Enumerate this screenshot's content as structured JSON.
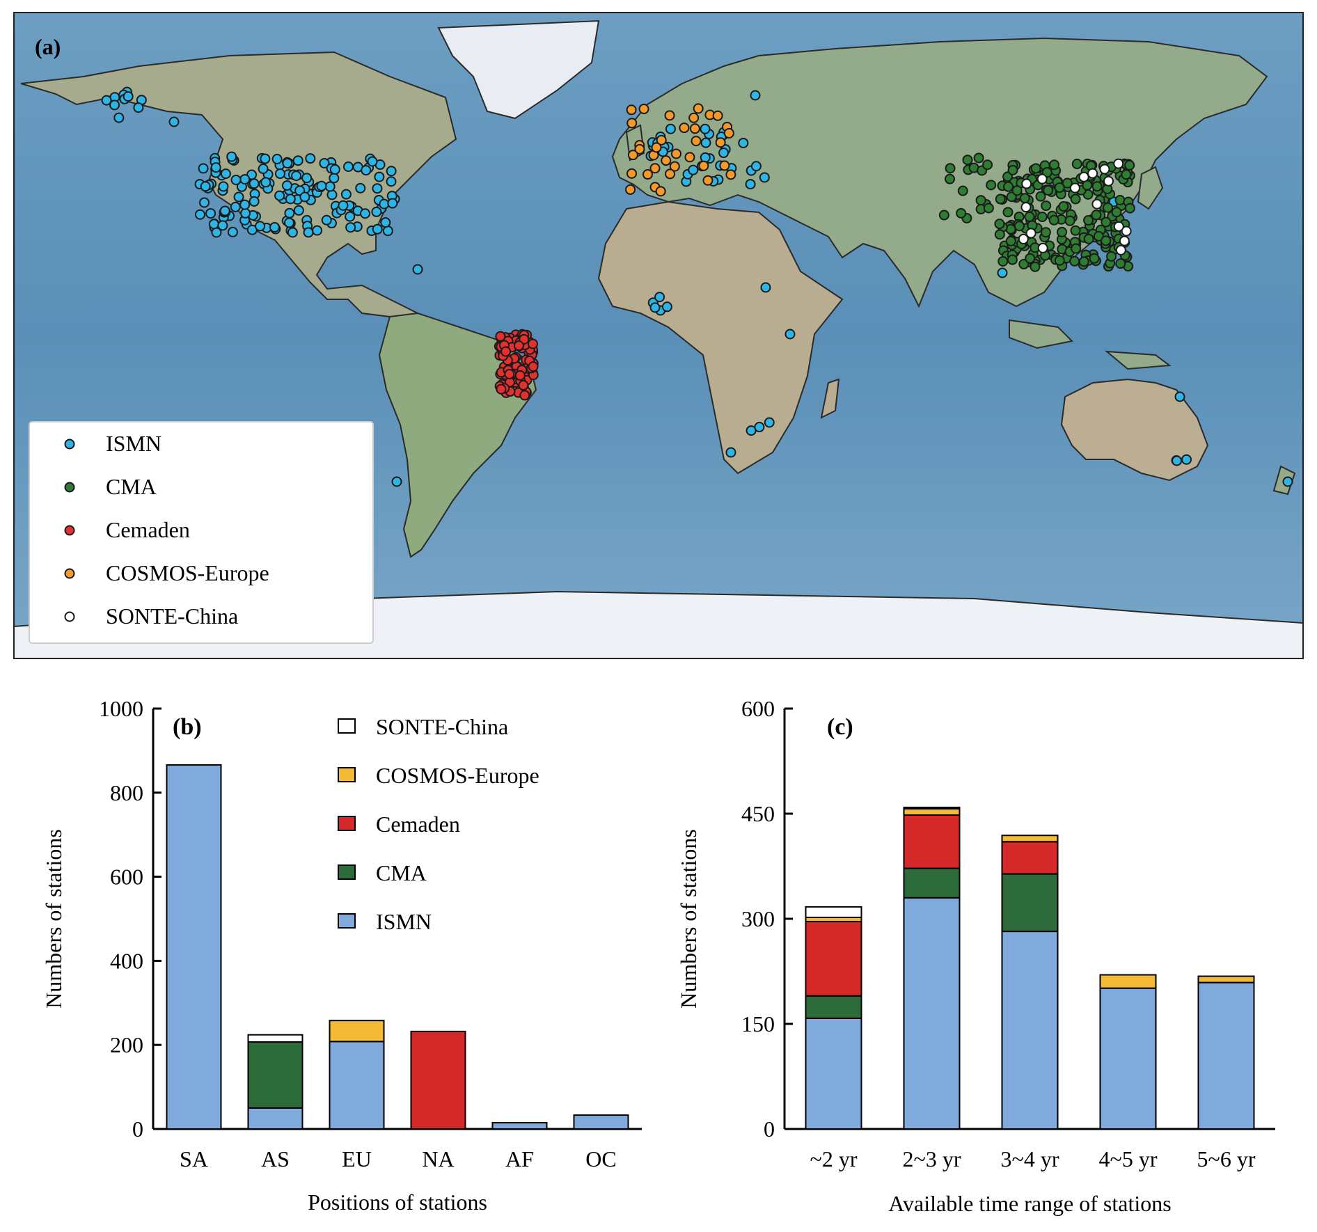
{
  "colors": {
    "ISMN": "#7faadb",
    "CMA": "#2e6b3a",
    "Cemaden": "#d62a2a",
    "COSMOS-Europe": "#f4b935",
    "SONTE-China": "#ffffff",
    "ISMN_dot": "#2fb4e6",
    "CMA_dot": "#2e7d32",
    "Cemaden_dot": "#e53030",
    "COSMOS_dot": "#f59a2a",
    "SONTE_dot": "#ffffff",
    "ocean": "#5f93b8",
    "land": "#9fae8c",
    "ice": "#e8eef5"
  },
  "map": {
    "panel_label": "(a)",
    "legend": [
      {
        "name": "ISMN",
        "color_key": "ISMN_dot"
      },
      {
        "name": "CMA",
        "color_key": "CMA_dot"
      },
      {
        "name": "Cemaden",
        "color_key": "Cemaden_dot"
      },
      {
        "name": "COSMOS-Europe",
        "color_key": "COSMOS_dot"
      },
      {
        "name": "SONTE-China",
        "color_key": "SONTE_dot"
      }
    ]
  },
  "chart_data": [
    {
      "panel_label": "(b)",
      "type": "bar",
      "stacked": true,
      "xlabel": "Positions of stations",
      "ylabel": "Numbers of stations",
      "ylim": [
        0,
        1000
      ],
      "yticks": [
        0,
        200,
        400,
        600,
        800,
        1000
      ],
      "categories": [
        "SA",
        "AS",
        "EU",
        "NA",
        "AF",
        "OC"
      ],
      "series": [
        {
          "name": "ISMN",
          "values": [
            866,
            50,
            208,
            0,
            15,
            33
          ]
        },
        {
          "name": "CMA",
          "values": [
            0,
            157,
            0,
            0,
            0,
            0
          ]
        },
        {
          "name": "Cemaden",
          "values": [
            0,
            0,
            0,
            232,
            0,
            0
          ]
        },
        {
          "name": "COSMOS-Europe",
          "values": [
            0,
            0,
            50,
            0,
            0,
            0
          ]
        },
        {
          "name": "SONTE-China",
          "values": [
            0,
            17,
            0,
            0,
            0,
            0
          ]
        }
      ],
      "legend_order": [
        "SONTE-China",
        "COSMOS-Europe",
        "Cemaden",
        "CMA",
        "ISMN"
      ],
      "legend_position": "top-right"
    },
    {
      "panel_label": "(c)",
      "type": "bar",
      "stacked": true,
      "xlabel": "Available time range of stations",
      "ylabel": "Numbers of stations",
      "ylim": [
        0,
        600
      ],
      "yticks": [
        0,
        150,
        300,
        450,
        600
      ],
      "categories": [
        "~2 yr",
        "2~3 yr",
        "3~4 yr",
        "4~5 yr",
        "5~6 yr"
      ],
      "series": [
        {
          "name": "ISMN",
          "values": [
            158,
            330,
            282,
            201,
            209
          ]
        },
        {
          "name": "CMA",
          "values": [
            32,
            42,
            82,
            0,
            0
          ]
        },
        {
          "name": "Cemaden",
          "values": [
            106,
            76,
            46,
            0,
            0
          ]
        },
        {
          "name": "COSMOS-Europe",
          "values": [
            6,
            9,
            9,
            19,
            9
          ]
        },
        {
          "name": "SONTE-China",
          "values": [
            15,
            2,
            0,
            0,
            0
          ]
        }
      ]
    }
  ]
}
